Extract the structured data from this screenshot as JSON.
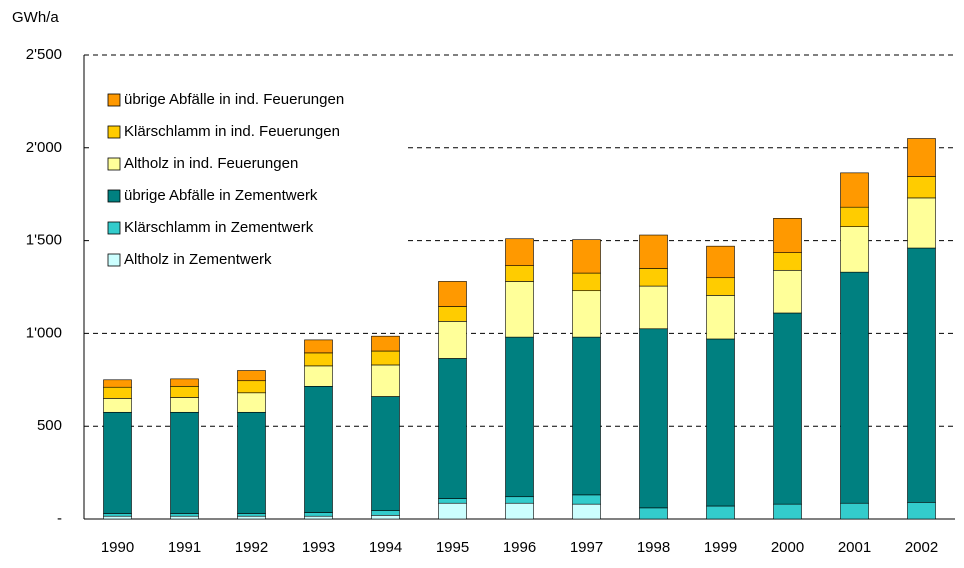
{
  "chart_data": {
    "type": "stacked_bar",
    "y_label": "GWh/a",
    "categories": [
      "1990",
      "1991",
      "1992",
      "1993",
      "1994",
      "1995",
      "1996",
      "1997",
      "1998",
      "1999",
      "2000",
      "2001",
      "2002"
    ],
    "series": [
      {
        "name": "Altholz in Zementwerk",
        "color": "#ccffff",
        "values": [
          15,
          15,
          15,
          15,
          20,
          85,
          85,
          80,
          0,
          0,
          0,
          0,
          0
        ]
      },
      {
        "name": "Klärschlamm in Zementwerk",
        "color": "#33cccc",
        "values": [
          15,
          15,
          15,
          20,
          25,
          25,
          35,
          50,
          60,
          70,
          80,
          85,
          90
        ]
      },
      {
        "name": "übrige Abfälle in Zementwerk",
        "color": "#008080",
        "values": [
          545,
          545,
          545,
          680,
          615,
          755,
          860,
          850,
          965,
          900,
          1030,
          1245,
          1370
        ]
      },
      {
        "name": "Altholz in ind. Feuerungen",
        "color": "#ffff99",
        "values": [
          75,
          80,
          105,
          110,
          170,
          200,
          300,
          250,
          230,
          235,
          230,
          245,
          270
        ]
      },
      {
        "name": "Klärschlamm in ind. Feuerungen",
        "color": "#ffcc00",
        "values": [
          60,
          60,
          65,
          70,
          75,
          80,
          85,
          95,
          95,
          95,
          95,
          105,
          115
        ]
      },
      {
        "name": "übrige Abfälle in ind. Feuerungen",
        "color": "#ff9900",
        "values": [
          40,
          40,
          55,
          70,
          80,
          135,
          145,
          180,
          180,
          170,
          185,
          185,
          205
        ]
      }
    ],
    "ylim": [
      0,
      2500
    ],
    "yticks": [
      {
        "value": 0,
        "label": "-"
      },
      500,
      {
        "value": 1000,
        "label": "1'000"
      },
      {
        "value": 1500,
        "label": "1'500"
      },
      {
        "value": 2000,
        "label": "2'000"
      },
      {
        "value": 2500,
        "label": "2'500"
      }
    ],
    "grid": true,
    "legend": "upper left"
  }
}
